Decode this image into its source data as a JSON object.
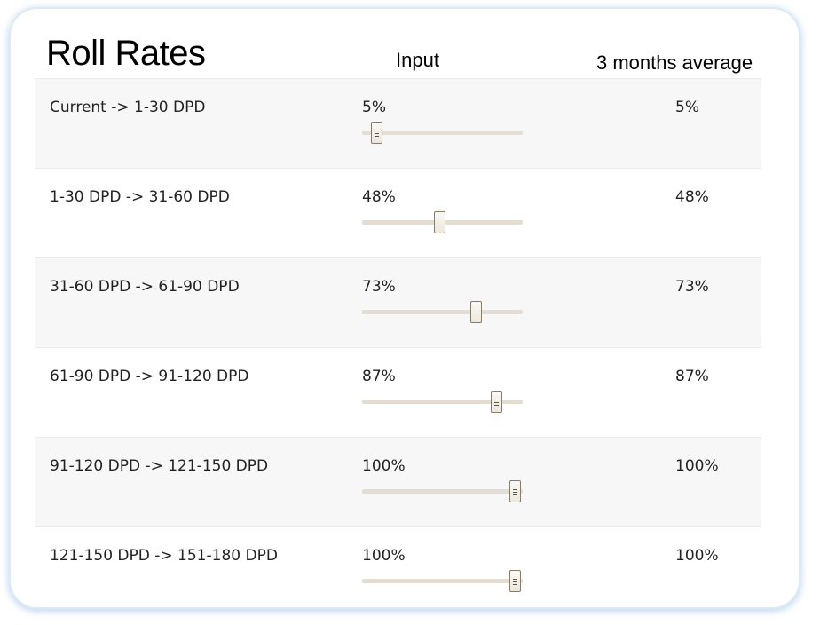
{
  "title": "Roll Rates",
  "columns": {
    "input": "Input",
    "average": "3 months average"
  },
  "rows": [
    {
      "label": "Current -> 1-30 DPD",
      "value": "5%",
      "fraction": 0.05,
      "average": "5%"
    },
    {
      "label": "1-30 DPD -> 31-60 DPD",
      "value": "48%",
      "fraction": 0.48,
      "average": "48%"
    },
    {
      "label": "31-60 DPD -> 61-90 DPD",
      "value": "73%",
      "fraction": 0.73,
      "average": "73%"
    },
    {
      "label": "61-90 DPD -> 91-120 DPD",
      "value": "87%",
      "fraction": 0.87,
      "average": "87%"
    },
    {
      "label": "91-120 DPD -> 121-150 DPD",
      "value": "100%",
      "fraction": 1.0,
      "average": "100%"
    },
    {
      "label": "121-150 DPD -> 151-180 DPD",
      "value": "100%",
      "fraction": 1.0,
      "average": "100%"
    }
  ],
  "colors": {
    "track": "#e3ddd3",
    "handle_border": "#867c6c",
    "row_shade": "#f7f7f7",
    "card_glow": "#dde9f6"
  }
}
